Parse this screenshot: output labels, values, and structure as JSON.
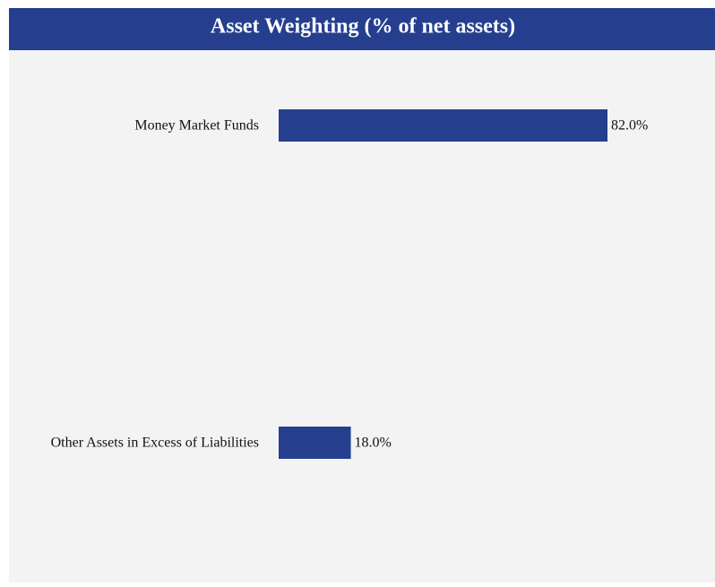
{
  "chart_data": {
    "type": "bar",
    "orientation": "horizontal",
    "title": "Asset Weighting (% of net assets)",
    "categories": [
      "Money Market Funds",
      "Other Assets in Excess of Liabilities"
    ],
    "values": [
      82.0,
      18.0
    ],
    "value_labels": [
      "82.0%",
      "18.0%"
    ],
    "color": "#253f8e"
  }
}
